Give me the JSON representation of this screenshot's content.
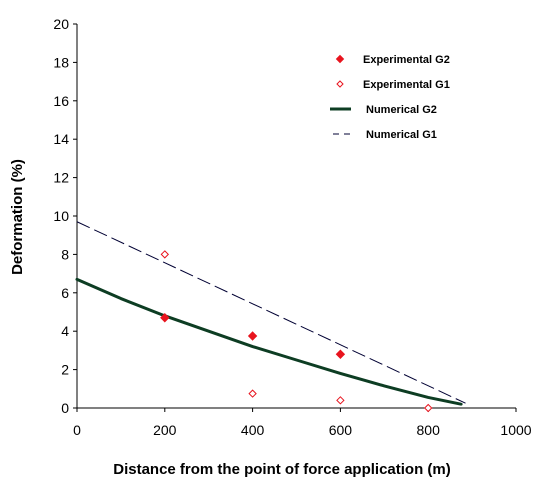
{
  "chart_data": {
    "type": "scatter",
    "title": "",
    "xlabel": "Distance from the point of force application (m)",
    "ylabel": "Deformation (%)",
    "xlim": [
      0,
      1000
    ],
    "ylim": [
      0,
      20
    ],
    "x_ticks": [
      0,
      200,
      400,
      600,
      800,
      1000
    ],
    "y_ticks": [
      0,
      2,
      4,
      6,
      8,
      10,
      12,
      14,
      16,
      18,
      20
    ],
    "grid": false,
    "legend_position": "top-right",
    "series": [
      {
        "name": "Experimental G2",
        "kind": "marker",
        "marker": "filled-diamond",
        "color": "#e8141e",
        "x": [
          200,
          400,
          600
        ],
        "y": [
          4.7,
          3.75,
          2.8
        ]
      },
      {
        "name": "Experimental G1",
        "kind": "marker",
        "marker": "open-diamond",
        "color": "#e8141e",
        "x": [
          200,
          400,
          600,
          800
        ],
        "y": [
          8.0,
          0.75,
          0.4,
          0.0
        ]
      },
      {
        "name": "Numerical G2",
        "kind": "line",
        "style": "solid",
        "color": "#0d3d23",
        "x": [
          0,
          100,
          200,
          300,
          400,
          500,
          600,
          700,
          800,
          875
        ],
        "y": [
          6.7,
          5.7,
          4.8,
          4.0,
          3.2,
          2.5,
          1.8,
          1.15,
          0.55,
          0.2
        ]
      },
      {
        "name": "Numerical G1",
        "kind": "line",
        "style": "dashed",
        "color": "#000033",
        "x": [
          0,
          885
        ],
        "y": [
          9.7,
          0.25
        ]
      }
    ]
  }
}
